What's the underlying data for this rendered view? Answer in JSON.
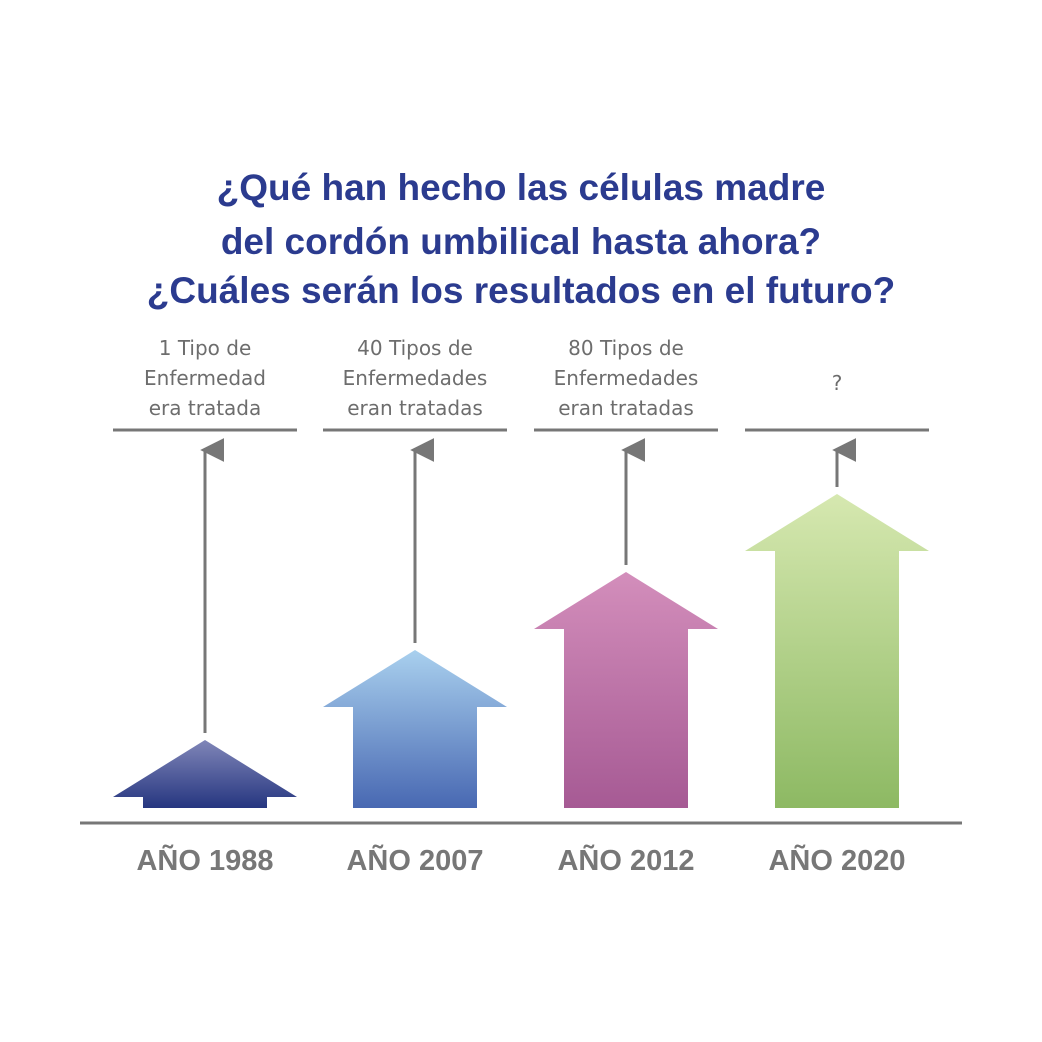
{
  "title": [
    "¿Qué han hecho las células madre",
    "del cordón umbilical hasta ahora?",
    "¿Cuáles serán los resultados en el futuro?"
  ],
  "columns": [
    {
      "label": [
        "1 Tipo de",
        "Enfermedad",
        "era tratada"
      ],
      "year": "AÑO 1988"
    },
    {
      "label": [
        "40 Tipos de",
        "Enfermedades",
        "eran tratadas"
      ],
      "year": "AÑO 2007"
    },
    {
      "label": [
        "80 Tipos de",
        "Enfermedades",
        "eran tratadas"
      ],
      "year": "AÑO 2012"
    },
    {
      "label": [
        "?"
      ],
      "year": "AÑO 2020"
    }
  ]
}
